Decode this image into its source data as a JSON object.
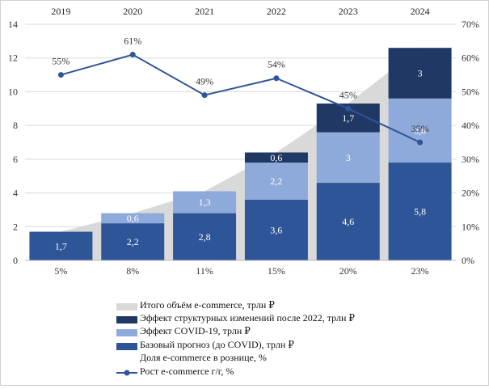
{
  "chart_data": {
    "type": "bar",
    "stacked": true,
    "categories": [
      "2019",
      "2020",
      "2021",
      "2022",
      "2023",
      "2024"
    ],
    "series": [
      {
        "name": "Базовый прогноз (до COVID),  трлн ₽",
        "key": "base",
        "color": "#2e5597",
        "values": [
          1.7,
          2.2,
          2.8,
          3.6,
          4.6,
          5.8
        ],
        "labels": [
          "1,7",
          "2,2",
          "2,8",
          "3,6",
          "4,6",
          "5,8"
        ]
      },
      {
        "name": "Эффект COVID-19,  трлн ₽",
        "key": "covid",
        "color": "#8eaadb",
        "values": [
          0,
          0.6,
          1.3,
          2.2,
          3,
          3.8
        ],
        "labels": [
          "",
          "0,6",
          "1,3",
          "2,2",
          "3",
          "3,8"
        ]
      },
      {
        "name": "Эффект структурных изменений после 2022,  трлн ₽",
        "key": "struct",
        "color": "#1f3864",
        "values": [
          0,
          0,
          0,
          0.6,
          1.7,
          3
        ],
        "labels": [
          "",
          "",
          "",
          "0,6",
          "1,7",
          "3"
        ]
      }
    ],
    "area": {
      "name": "Итого  объём e-commerce,  трлн ₽",
      "color": "#d9d9d9",
      "values": [
        1.7,
        2.8,
        4.1,
        6.4,
        9.3,
        12.6
      ]
    },
    "line": {
      "name": "Рост e-commerce  г/г, %",
      "color": "#2e5597",
      "axis": "right",
      "values": [
        55,
        61,
        49,
        54,
        45,
        35
      ],
      "labels": [
        "55%",
        "61%",
        "49%",
        "54%",
        "45%",
        "35%"
      ]
    },
    "share": {
      "name": "Доля e-commerce  в рознице, %",
      "labels": [
        "5%",
        "8%",
        "11%",
        "15%",
        "20%",
        "23%"
      ]
    },
    "y_left": {
      "range": [
        0,
        14
      ],
      "ticks": [
        0,
        2,
        4,
        6,
        8,
        10,
        12,
        14
      ],
      "tick_labels": [
        "0",
        "2",
        "4",
        "6",
        "8",
        "10",
        "12",
        "14"
      ]
    },
    "y_right": {
      "range": [
        0,
        70
      ],
      "ticks": [
        0,
        10,
        20,
        30,
        40,
        50,
        60,
        70
      ],
      "tick_labels": [
        "0%",
        "10%",
        "20%",
        "30%",
        "40%",
        "50%",
        "60%",
        "70%"
      ]
    },
    "grid": true,
    "legend_position": "bottom"
  }
}
